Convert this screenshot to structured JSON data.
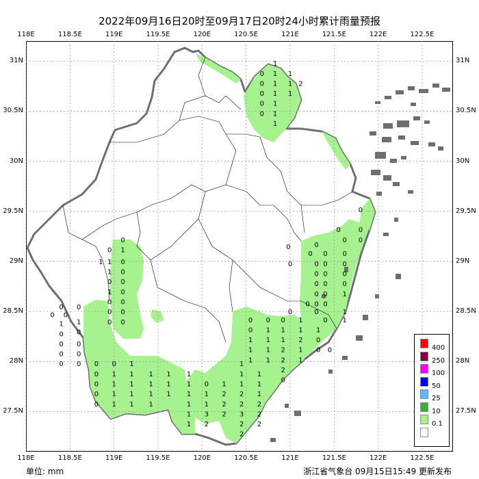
{
  "title": "2022年09月16日20时至09月17日20时24小时累计雨量预报",
  "lon_labels": [
    "118E",
    "118.5E",
    "119E",
    "119.5E",
    "120E",
    "120.5E",
    "121E",
    "121.5E",
    "122E",
    "122.5E"
  ],
  "lat_labels": [
    "31N",
    "30.5N",
    "30N",
    "29.5N",
    "29N",
    "28.5N",
    "28N",
    "27.5N"
  ],
  "unit_label": "单位: mm",
  "issuer": "浙江省气象台 09月15日15:49 更新发布",
  "legend": [
    {
      "label": "400",
      "color": "#ff0000"
    },
    {
      "label": "250",
      "color": "#800040"
    },
    {
      "label": "100",
      "color": "#ff00ff"
    },
    {
      "label": "50",
      "color": "#0000ff"
    },
    {
      "label": "25",
      "color": "#61b8ff"
    },
    {
      "label": "10",
      "color": "#3caa3c"
    },
    {
      "label": "0.1",
      "color": "#a6f28f"
    },
    {
      "label": "",
      "color": "#ffffff"
    }
  ],
  "colors": {
    "rain_light": "#a6f28f",
    "coast": "#6e6e6e",
    "boundary": "#000000",
    "grid": "#999999"
  },
  "station_values": [
    {
      "lon": 120.83,
      "lat": 30.98,
      "v": "1"
    },
    {
      "lon": 120.68,
      "lat": 30.88,
      "v": "0"
    },
    {
      "lon": 120.83,
      "lat": 30.88,
      "v": "1"
    },
    {
      "lon": 121.0,
      "lat": 30.88,
      "v": "1"
    },
    {
      "lon": 120.68,
      "lat": 30.78,
      "v": "0"
    },
    {
      "lon": 120.83,
      "lat": 30.78,
      "v": "1"
    },
    {
      "lon": 121.0,
      "lat": 30.78,
      "v": "1"
    },
    {
      "lon": 121.12,
      "lat": 30.78,
      "v": "2"
    },
    {
      "lon": 120.68,
      "lat": 30.68,
      "v": "0"
    },
    {
      "lon": 120.83,
      "lat": 30.68,
      "v": "1"
    },
    {
      "lon": 121.0,
      "lat": 30.68,
      "v": "1"
    },
    {
      "lon": 120.68,
      "lat": 30.58,
      "v": "0"
    },
    {
      "lon": 120.83,
      "lat": 30.58,
      "v": "1"
    },
    {
      "lon": 120.68,
      "lat": 30.48,
      "v": "0"
    },
    {
      "lon": 120.83,
      "lat": 30.48,
      "v": "1"
    },
    {
      "lon": 120.83,
      "lat": 30.38,
      "v": "1"
    },
    {
      "lon": 121.3,
      "lat": 29.17,
      "v": "0"
    },
    {
      "lon": 120.98,
      "lat": 29.15,
      "v": "0"
    },
    {
      "lon": 121.23,
      "lat": 29.08,
      "v": "0"
    },
    {
      "lon": 121.4,
      "lat": 29.08,
      "v": "0"
    },
    {
      "lon": 121.62,
      "lat": 29.08,
      "v": "0"
    },
    {
      "lon": 121.3,
      "lat": 28.98,
      "v": "0"
    },
    {
      "lon": 121.4,
      "lat": 28.98,
      "v": "0"
    },
    {
      "lon": 121.62,
      "lat": 28.98,
      "v": "0"
    },
    {
      "lon": 121.0,
      "lat": 28.98,
      "v": "0"
    },
    {
      "lon": 121.3,
      "lat": 28.88,
      "v": "0"
    },
    {
      "lon": 121.4,
      "lat": 28.88,
      "v": "0"
    },
    {
      "lon": 121.62,
      "lat": 28.88,
      "v": "0"
    },
    {
      "lon": 121.3,
      "lat": 28.78,
      "v": "0"
    },
    {
      "lon": 121.4,
      "lat": 28.78,
      "v": "0"
    },
    {
      "lon": 121.62,
      "lat": 28.78,
      "v": "0"
    },
    {
      "lon": 121.3,
      "lat": 28.68,
      "v": "0"
    },
    {
      "lon": 121.4,
      "lat": 28.68,
      "v": "0"
    },
    {
      "lon": 121.62,
      "lat": 28.68,
      "v": "1"
    },
    {
      "lon": 121.3,
      "lat": 28.58,
      "v": "0"
    },
    {
      "lon": 121.4,
      "lat": 28.58,
      "v": "0"
    },
    {
      "lon": 121.2,
      "lat": 28.58,
      "v": "0"
    },
    {
      "lon": 121.0,
      "lat": 28.5,
      "v": "0"
    },
    {
      "lon": 121.3,
      "lat": 28.5,
      "v": "0"
    },
    {
      "lon": 121.62,
      "lat": 28.5,
      "v": "1"
    },
    {
      "lon": 121.4,
      "lat": 28.42,
      "v": "0"
    },
    {
      "lon": 121.62,
      "lat": 28.42,
      "v": "1"
    },
    {
      "lon": 121.8,
      "lat": 29.52,
      "v": "0"
    },
    {
      "lon": 121.55,
      "lat": 29.32,
      "v": "0"
    },
    {
      "lon": 121.8,
      "lat": 29.32,
      "v": "0"
    },
    {
      "lon": 121.62,
      "lat": 29.22,
      "v": "0"
    },
    {
      "lon": 121.8,
      "lat": 29.22,
      "v": "0"
    },
    {
      "lon": 119.1,
      "lat": 29.22,
      "v": "0"
    },
    {
      "lon": 118.95,
      "lat": 29.12,
      "v": "0"
    },
    {
      "lon": 119.1,
      "lat": 29.12,
      "v": "1"
    },
    {
      "lon": 118.85,
      "lat": 29.0,
      "v": "1"
    },
    {
      "lon": 118.95,
      "lat": 29.0,
      "v": "1"
    },
    {
      "lon": 119.1,
      "lat": 29.0,
      "v": "0"
    },
    {
      "lon": 118.95,
      "lat": 28.9,
      "v": "1"
    },
    {
      "lon": 119.1,
      "lat": 28.9,
      "v": "0"
    },
    {
      "lon": 118.95,
      "lat": 28.8,
      "v": "0"
    },
    {
      "lon": 119.1,
      "lat": 28.8,
      "v": "0"
    },
    {
      "lon": 118.95,
      "lat": 28.7,
      "v": "1"
    },
    {
      "lon": 119.1,
      "lat": 28.7,
      "v": "0"
    },
    {
      "lon": 118.95,
      "lat": 28.6,
      "v": "0"
    },
    {
      "lon": 119.1,
      "lat": 28.6,
      "v": "0"
    },
    {
      "lon": 118.95,
      "lat": 28.5,
      "v": "0"
    },
    {
      "lon": 119.1,
      "lat": 28.5,
      "v": "0"
    },
    {
      "lon": 118.95,
      "lat": 28.4,
      "v": "0"
    },
    {
      "lon": 119.1,
      "lat": 28.4,
      "v": "0"
    },
    {
      "lon": 118.4,
      "lat": 28.55,
      "v": "0"
    },
    {
      "lon": 118.3,
      "lat": 28.47,
      "v": "0"
    },
    {
      "lon": 118.45,
      "lat": 28.47,
      "v": "0"
    },
    {
      "lon": 118.4,
      "lat": 28.38,
      "v": "1"
    },
    {
      "lon": 118.4,
      "lat": 28.28,
      "v": "0"
    },
    {
      "lon": 118.4,
      "lat": 28.18,
      "v": "0"
    },
    {
      "lon": 118.4,
      "lat": 28.08,
      "v": "0"
    },
    {
      "lon": 118.4,
      "lat": 27.98,
      "v": "0"
    },
    {
      "lon": 118.6,
      "lat": 28.55,
      "v": "0"
    },
    {
      "lon": 118.6,
      "lat": 28.4,
      "v": "1"
    },
    {
      "lon": 118.6,
      "lat": 28.3,
      "v": "0"
    },
    {
      "lon": 118.6,
      "lat": 28.18,
      "v": "0"
    },
    {
      "lon": 118.6,
      "lat": 28.08,
      "v": "0"
    },
    {
      "lon": 118.6,
      "lat": 27.98,
      "v": "0"
    },
    {
      "lon": 118.8,
      "lat": 27.98,
      "v": "0"
    },
    {
      "lon": 118.8,
      "lat": 27.88,
      "v": "0"
    },
    {
      "lon": 118.8,
      "lat": 27.78,
      "v": "0"
    },
    {
      "lon": 118.8,
      "lat": 27.68,
      "v": "0"
    },
    {
      "lon": 118.8,
      "lat": 27.58,
      "v": "0"
    },
    {
      "lon": 119.0,
      "lat": 27.98,
      "v": "0"
    },
    {
      "lon": 119.0,
      "lat": 27.88,
      "v": "1"
    },
    {
      "lon": 119.0,
      "lat": 27.78,
      "v": "1"
    },
    {
      "lon": 119.0,
      "lat": 27.68,
      "v": "1"
    },
    {
      "lon": 119.0,
      "lat": 27.58,
      "v": "1"
    },
    {
      "lon": 119.2,
      "lat": 27.98,
      "v": "1"
    },
    {
      "lon": 119.2,
      "lat": 27.88,
      "v": "1"
    },
    {
      "lon": 119.2,
      "lat": 27.78,
      "v": "1"
    },
    {
      "lon": 119.2,
      "lat": 27.68,
      "v": "1"
    },
    {
      "lon": 119.2,
      "lat": 27.58,
      "v": "1"
    },
    {
      "lon": 119.42,
      "lat": 27.88,
      "v": "1"
    },
    {
      "lon": 119.42,
      "lat": 27.78,
      "v": "1"
    },
    {
      "lon": 119.42,
      "lat": 27.68,
      "v": "1"
    },
    {
      "lon": 119.42,
      "lat": 27.58,
      "v": "1"
    },
    {
      "lon": 119.62,
      "lat": 27.88,
      "v": "1"
    },
    {
      "lon": 119.62,
      "lat": 27.78,
      "v": "1"
    },
    {
      "lon": 119.62,
      "lat": 27.68,
      "v": "1"
    },
    {
      "lon": 119.85,
      "lat": 27.88,
      "v": "1"
    },
    {
      "lon": 119.85,
      "lat": 27.78,
      "v": "1"
    },
    {
      "lon": 119.85,
      "lat": 27.68,
      "v": "1"
    },
    {
      "lon": 119.85,
      "lat": 27.58,
      "v": "1"
    },
    {
      "lon": 119.85,
      "lat": 27.48,
      "v": "1"
    },
    {
      "lon": 119.85,
      "lat": 27.38,
      "v": "1"
    },
    {
      "lon": 120.05,
      "lat": 27.78,
      "v": "0"
    },
    {
      "lon": 120.05,
      "lat": 27.68,
      "v": "1"
    },
    {
      "lon": 120.05,
      "lat": 27.58,
      "v": "1"
    },
    {
      "lon": 120.05,
      "lat": 27.48,
      "v": "3"
    },
    {
      "lon": 120.05,
      "lat": 27.38,
      "v": "2"
    },
    {
      "lon": 120.25,
      "lat": 27.78,
      "v": "1"
    },
    {
      "lon": 120.25,
      "lat": 27.68,
      "v": "2"
    },
    {
      "lon": 120.25,
      "lat": 27.58,
      "v": "2"
    },
    {
      "lon": 120.25,
      "lat": 27.48,
      "v": "2"
    },
    {
      "lon": 120.45,
      "lat": 27.98,
      "v": "1"
    },
    {
      "lon": 120.45,
      "lat": 27.88,
      "v": "1"
    },
    {
      "lon": 120.45,
      "lat": 27.78,
      "v": "1"
    },
    {
      "lon": 120.45,
      "lat": 27.68,
      "v": "2"
    },
    {
      "lon": 120.45,
      "lat": 27.58,
      "v": "2"
    },
    {
      "lon": 120.45,
      "lat": 27.48,
      "v": "3"
    },
    {
      "lon": 120.45,
      "lat": 27.38,
      "v": "2"
    },
    {
      "lon": 120.45,
      "lat": 27.28,
      "v": "2"
    },
    {
      "lon": 120.65,
      "lat": 27.88,
      "v": "1"
    },
    {
      "lon": 120.65,
      "lat": 27.78,
      "v": "1"
    },
    {
      "lon": 120.65,
      "lat": 27.68,
      "v": "1"
    },
    {
      "lon": 120.65,
      "lat": 27.58,
      "v": "2"
    },
    {
      "lon": 120.65,
      "lat": 27.48,
      "v": "2"
    },
    {
      "lon": 120.65,
      "lat": 27.38,
      "v": "2"
    },
    {
      "lon": 120.55,
      "lat": 28.42,
      "v": "0"
    },
    {
      "lon": 120.55,
      "lat": 28.32,
      "v": "0"
    },
    {
      "lon": 120.55,
      "lat": 28.22,
      "v": "1"
    },
    {
      "lon": 120.55,
      "lat": 28.12,
      "v": "1"
    },
    {
      "lon": 120.55,
      "lat": 28.02,
      "v": "1"
    },
    {
      "lon": 120.75,
      "lat": 28.42,
      "v": "0"
    },
    {
      "lon": 120.75,
      "lat": 28.32,
      "v": "1"
    },
    {
      "lon": 120.75,
      "lat": 28.22,
      "v": "1"
    },
    {
      "lon": 120.75,
      "lat": 28.12,
      "v": "1"
    },
    {
      "lon": 120.75,
      "lat": 28.02,
      "v": "1"
    },
    {
      "lon": 120.92,
      "lat": 28.42,
      "v": "0"
    },
    {
      "lon": 120.92,
      "lat": 28.32,
      "v": "1"
    },
    {
      "lon": 120.92,
      "lat": 28.22,
      "v": "1"
    },
    {
      "lon": 120.92,
      "lat": 28.12,
      "v": "2"
    },
    {
      "lon": 120.92,
      "lat": 28.02,
      "v": "2"
    },
    {
      "lon": 120.92,
      "lat": 27.92,
      "v": "2"
    },
    {
      "lon": 120.92,
      "lat": 27.82,
      "v": "0"
    },
    {
      "lon": 121.12,
      "lat": 28.42,
      "v": "1"
    },
    {
      "lon": 121.12,
      "lat": 28.32,
      "v": "1"
    },
    {
      "lon": 121.12,
      "lat": 28.22,
      "v": "2"
    },
    {
      "lon": 121.12,
      "lat": 28.12,
      "v": "1"
    },
    {
      "lon": 121.12,
      "lat": 28.02,
      "v": "1"
    },
    {
      "lon": 121.32,
      "lat": 28.32,
      "v": "1"
    },
    {
      "lon": 121.32,
      "lat": 28.22,
      "v": "0"
    },
    {
      "lon": 121.32,
      "lat": 28.12,
      "v": "0"
    },
    {
      "lon": 121.45,
      "lat": 28.12,
      "v": "0"
    }
  ]
}
